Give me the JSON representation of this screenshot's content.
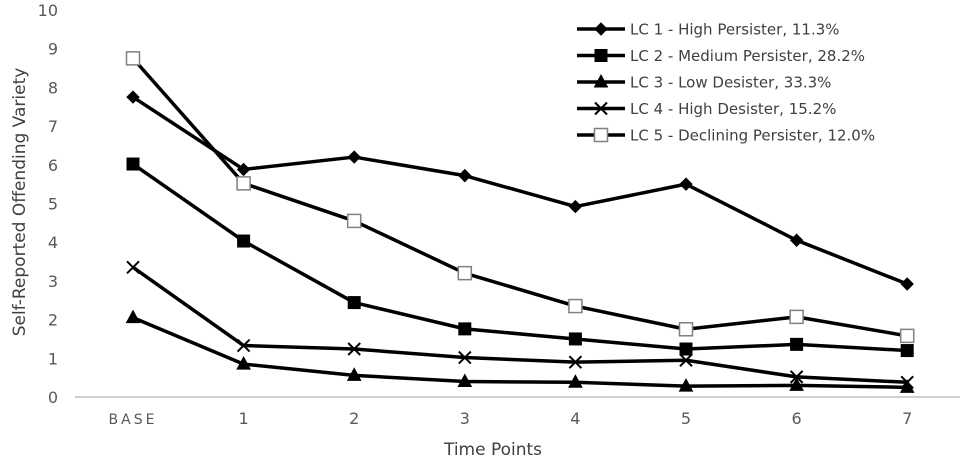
{
  "chart_data": {
    "type": "line",
    "title": "",
    "xlabel": "Time Points",
    "ylabel": "Self-Reported Offending Variety",
    "categories": [
      "BASE",
      "1",
      "2",
      "3",
      "4",
      "5",
      "6",
      "7"
    ],
    "ylim": [
      0,
      10
    ],
    "yticks": [
      "0",
      "1",
      "2",
      "3",
      "4",
      "5",
      "6",
      "7",
      "8",
      "9",
      "10"
    ],
    "grid": false,
    "legend_position": "top-right",
    "series": [
      {
        "name": "LC 1 - High Persister, 11.3%",
        "marker": "diamond",
        "values": [
          7.75,
          5.88,
          6.2,
          5.72,
          4.92,
          5.5,
          4.05,
          2.92
        ]
      },
      {
        "name": "LC 2 - Medium Persister, 28.2%",
        "marker": "filled-square",
        "values": [
          6.02,
          4.03,
          2.44,
          1.76,
          1.5,
          1.24,
          1.36,
          1.2
        ]
      },
      {
        "name": "LC 3 - Low Desister, 33.3%",
        "marker": "triangle",
        "values": [
          2.05,
          0.85,
          0.56,
          0.4,
          0.38,
          0.28,
          0.3,
          0.25
        ]
      },
      {
        "name": "LC 4 - High Desister, 15.2%",
        "marker": "x",
        "values": [
          3.35,
          1.33,
          1.24,
          1.02,
          0.9,
          0.95,
          0.52,
          0.38
        ]
      },
      {
        "name": "LC 5 - Declining Persister, 12.0%",
        "marker": "open-square",
        "values": [
          8.75,
          5.52,
          4.55,
          3.2,
          2.35,
          1.75,
          2.07,
          1.58
        ]
      }
    ],
    "colors": {
      "line": "#000000",
      "axis": "#bfbfbf",
      "text": "#595959"
    }
  }
}
